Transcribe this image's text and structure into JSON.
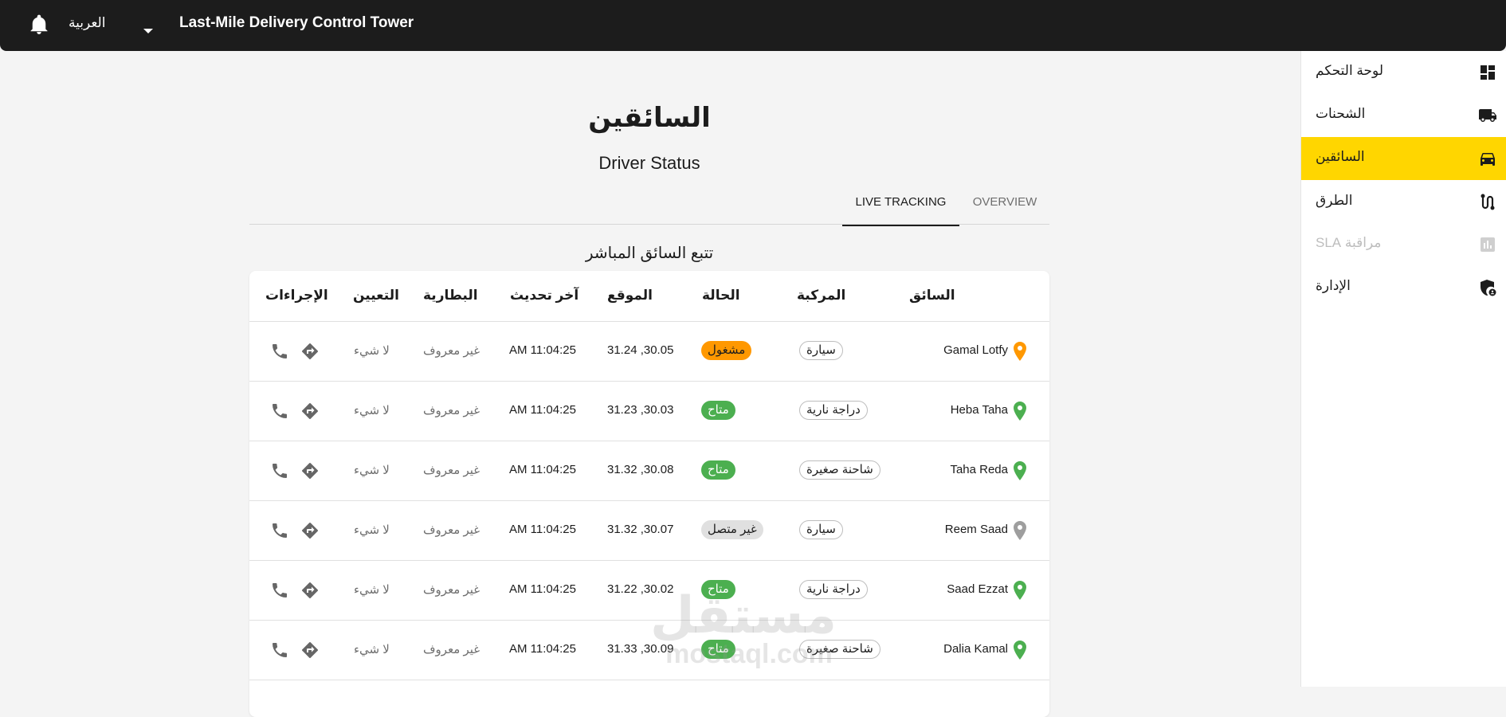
{
  "header": {
    "title": "Last-Mile Delivery Control Tower",
    "language": "العربية",
    "icons": {
      "notifications": "bell-icon",
      "language_menu": "caret-down-icon"
    }
  },
  "sidebar": {
    "items": [
      {
        "label": "لوحة التحكم",
        "icon": "dashboard-icon",
        "active": false,
        "disabled": false
      },
      {
        "label": "الشحنات",
        "icon": "truck-icon",
        "active": false,
        "disabled": false
      },
      {
        "label": "السائقين",
        "icon": "car-icon",
        "active": true,
        "disabled": false
      },
      {
        "label": "الطرق",
        "icon": "route-icon",
        "active": false,
        "disabled": false
      },
      {
        "label": "مراقبة SLA",
        "icon": "chart-icon",
        "active": false,
        "disabled": true
      },
      {
        "label": "الإدارة",
        "icon": "admin-shield-icon",
        "active": false,
        "disabled": false
      }
    ],
    "active_color": "#ffd600"
  },
  "page": {
    "title": "السائقين",
    "subtitle": "Driver Status",
    "tabs": [
      {
        "label": "LIVE TRACKING",
        "active": true
      },
      {
        "label": "OVERVIEW",
        "active": false
      }
    ],
    "section_title": "تتبع السائق المباشر"
  },
  "table": {
    "columns": {
      "driver": "السائق",
      "vehicle": "المركبة",
      "status": "الحالة",
      "location": "الموقع",
      "last_update": "آخر تحديث",
      "battery": "البطارية",
      "assignment": "التعيين",
      "actions": "الإجراءات"
    },
    "rows": [
      {
        "driver": "Gamal Lotfy",
        "vehicle": "سيارة",
        "status": "مشغول",
        "status_type": "busy",
        "location": "31.24 ,30.05",
        "last_update": "AM 11:04:25",
        "battery": "غير معروف",
        "assignment": "لا شيء"
      },
      {
        "driver": "Heba Taha",
        "vehicle": "دراجة نارية",
        "status": "متاح",
        "status_type": "available",
        "location": "31.23 ,30.03",
        "last_update": "AM 11:04:25",
        "battery": "غير معروف",
        "assignment": "لا شيء"
      },
      {
        "driver": "Taha Reda",
        "vehicle": "شاحنة صغيرة",
        "status": "متاح",
        "status_type": "available",
        "location": "31.32 ,30.08",
        "last_update": "AM 11:04:25",
        "battery": "غير معروف",
        "assignment": "لا شيء"
      },
      {
        "driver": "Reem Saad",
        "vehicle": "سيارة",
        "status": "غير متصل",
        "status_type": "offline",
        "location": "31.32 ,30.07",
        "last_update": "AM 11:04:25",
        "battery": "غير معروف",
        "assignment": "لا شيء"
      },
      {
        "driver": "Saad Ezzat",
        "vehicle": "دراجة نارية",
        "status": "متاح",
        "status_type": "available",
        "location": "31.22 ,30.02",
        "last_update": "AM 11:04:25",
        "battery": "غير معروف",
        "assignment": "لا شيء"
      },
      {
        "driver": "Dalia Kamal",
        "vehicle": "شاحنة صغيرة",
        "status": "متاح",
        "status_type": "available",
        "location": "31.33 ,30.09",
        "last_update": "AM 11:04:25",
        "battery": "غير معروف",
        "assignment": "لا شيء"
      }
    ],
    "status_colors": {
      "busy": "#ff9800",
      "available": "#4caf50",
      "offline": "#e0e0e0"
    },
    "row_actions": [
      "directions-icon",
      "phone-icon"
    ]
  },
  "watermark": {
    "logo": "مستقل",
    "site": "mostaql.com"
  }
}
